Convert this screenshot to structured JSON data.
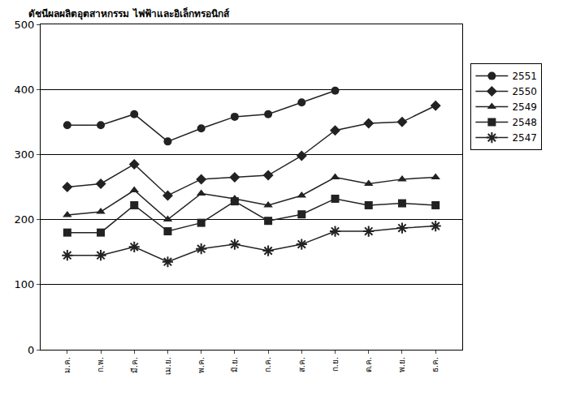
{
  "chart_data": {
    "type": "line",
    "title": "ดัชนีผลผลิตอุตสาหกรรม ไฟฟ้าและอิเล็กทรอนิกส์",
    "categories": [
      "ม.ค.",
      "ก.พ.",
      "มี.ค.",
      "เม.ย.",
      "พ.ค.",
      "มิ.ย.",
      "ก.ค.",
      "ส.ค.",
      "ก.ย.",
      "ต.ค.",
      "พ.ย.",
      "ธ.ค."
    ],
    "series": [
      {
        "name": "2551",
        "color": "#222222",
        "marker": "circle",
        "values": [
          345,
          345,
          362,
          320,
          340,
          358,
          362,
          380,
          398,
          null,
          null,
          null
        ]
      },
      {
        "name": "2550",
        "color": "#222222",
        "marker": "diamond",
        "values": [
          250,
          255,
          285,
          237,
          262,
          265,
          268,
          298,
          337,
          348,
          350,
          375
        ]
      },
      {
        "name": "2549",
        "color": "#222222",
        "marker": "triangle",
        "values": [
          207,
          212,
          245,
          200,
          240,
          232,
          222,
          237,
          265,
          255,
          262,
          265
        ]
      },
      {
        "name": "2548",
        "color": "#222222",
        "marker": "square",
        "values": [
          180,
          180,
          222,
          182,
          195,
          228,
          198,
          208,
          232,
          222,
          225,
          222
        ]
      },
      {
        "name": "2547",
        "color": "#222222",
        "marker": "asterisk",
        "values": [
          145,
          145,
          158,
          135,
          155,
          162,
          152,
          162,
          182,
          182,
          187,
          190
        ]
      }
    ],
    "ylim": [
      0,
      500
    ],
    "yticks": [
      0,
      100,
      200,
      300,
      400,
      500
    ],
    "grid": true,
    "legend": "right"
  }
}
